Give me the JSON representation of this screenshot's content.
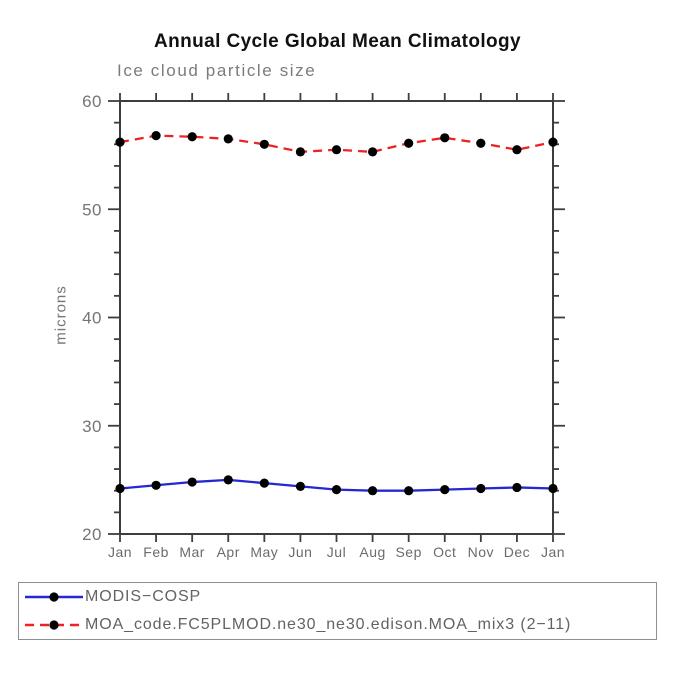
{
  "chart_data": {
    "type": "line",
    "title": "Annual Cycle Global Mean Climatology",
    "subtitle": "Ice cloud particle size",
    "ylabel": "microns",
    "xlabel": "",
    "categories": [
      "Jan",
      "Feb",
      "Mar",
      "Apr",
      "May",
      "Jun",
      "Jul",
      "Aug",
      "Sep",
      "Oct",
      "Nov",
      "Dec",
      "Jan"
    ],
    "ylim": [
      20,
      60
    ],
    "yticks": [
      20,
      30,
      40,
      50,
      60
    ],
    "y_minor_step": 2,
    "grid": false,
    "legend_position": "bottom-left",
    "series": [
      {
        "name": "MODIS−COSP",
        "color": "#2727cf",
        "line_style": "solid",
        "marker": "filled-circle",
        "marker_color": "#000000",
        "values": [
          24.2,
          24.5,
          24.8,
          25.0,
          24.7,
          24.4,
          24.1,
          24.0,
          24.0,
          24.1,
          24.2,
          24.3,
          24.2
        ]
      },
      {
        "name": "MOA_code.FC5PLMOD.ne30_ne30.edison.MOA_mix3 (2−11)",
        "color": "#ee2222",
        "line_style": "dashed",
        "marker": "filled-circle",
        "marker_color": "#000000",
        "values": [
          56.2,
          56.8,
          56.7,
          56.5,
          56.0,
          55.3,
          55.5,
          55.3,
          56.1,
          56.6,
          56.1,
          55.5,
          56.2
        ]
      }
    ]
  },
  "colors": {
    "axis": "#3d3d3d",
    "tick_label": "#757575",
    "month_label": "#6b6b6b",
    "title": "#111111",
    "subtitle": "#7b7b7b",
    "legend_text": "#636363",
    "legend_border": "#8f8f8f",
    "background": "#ffffff"
  }
}
